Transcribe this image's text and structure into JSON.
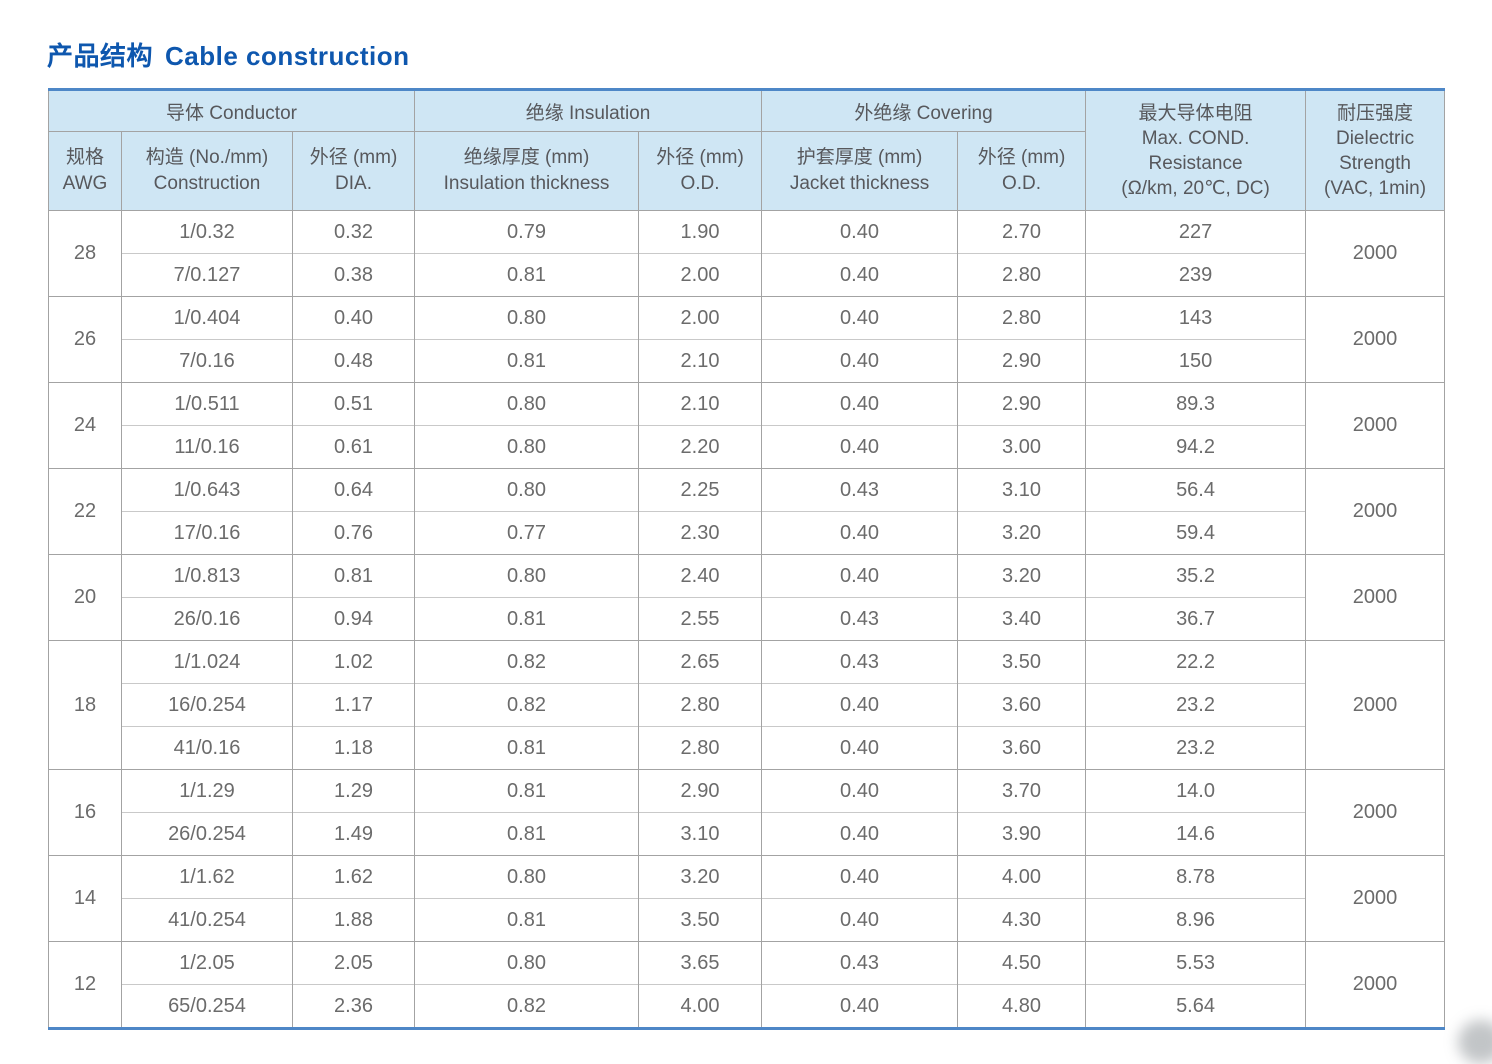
{
  "page": {
    "title_zh": "产品结构",
    "title_en": "Cable construction"
  },
  "colors": {
    "title_blue": "#0e57ae",
    "header_bg": "#cfe6f4",
    "frame_blue": "#4e87c7",
    "grid_gray": "#a3a3a3",
    "text_gray": "#6b6b6b"
  },
  "table": {
    "header_groups": [
      {
        "label": "导体 Conductor"
      },
      {
        "label": "绝缘 Insulation"
      },
      {
        "label": "外绝缘 Covering"
      }
    ],
    "sub_headers": [
      {
        "line1": "规格",
        "line2": "AWG"
      },
      {
        "line1": "构造 (No./mm)",
        "line2": "Construction"
      },
      {
        "line1": "外径 (mm)",
        "line2": "DIA."
      },
      {
        "line1": "绝缘厚度 (mm)",
        "line2": "Insulation thickness"
      },
      {
        "line1": "外径 (mm)",
        "line2": "O.D."
      },
      {
        "line1": "护套厚度 (mm)",
        "line2": "Jacket thickness"
      },
      {
        "line1": "外径 (mm)",
        "line2": "O.D."
      }
    ],
    "tall_headers": [
      {
        "lines": [
          "最大导体电阻",
          "Max. COND.",
          "Resistance",
          "(Ω/km, 20℃, DC)"
        ]
      },
      {
        "lines": [
          "耐压强度",
          "Dielectric",
          "Strength",
          "(VAC, 1min)"
        ]
      }
    ],
    "groups": [
      {
        "awg": "28",
        "dielectric": "2000",
        "rows": [
          {
            "construction": "1/0.32",
            "dia": "0.32",
            "ins_thickness": "0.79",
            "ins_od": "1.90",
            "jacket": "0.40",
            "cov_od": "2.70",
            "resistance": "227"
          },
          {
            "construction": "7/0.127",
            "dia": "0.38",
            "ins_thickness": "0.81",
            "ins_od": "2.00",
            "jacket": "0.40",
            "cov_od": "2.80",
            "resistance": "239"
          }
        ]
      },
      {
        "awg": "26",
        "dielectric": "2000",
        "rows": [
          {
            "construction": "1/0.404",
            "dia": "0.40",
            "ins_thickness": "0.80",
            "ins_od": "2.00",
            "jacket": "0.40",
            "cov_od": "2.80",
            "resistance": "143"
          },
          {
            "construction": "7/0.16",
            "dia": "0.48",
            "ins_thickness": "0.81",
            "ins_od": "2.10",
            "jacket": "0.40",
            "cov_od": "2.90",
            "resistance": "150"
          }
        ]
      },
      {
        "awg": "24",
        "dielectric": "2000",
        "rows": [
          {
            "construction": "1/0.511",
            "dia": "0.51",
            "ins_thickness": "0.80",
            "ins_od": "2.10",
            "jacket": "0.40",
            "cov_od": "2.90",
            "resistance": "89.3"
          },
          {
            "construction": "11/0.16",
            "dia": "0.61",
            "ins_thickness": "0.80",
            "ins_od": "2.20",
            "jacket": "0.40",
            "cov_od": "3.00",
            "resistance": "94.2"
          }
        ]
      },
      {
        "awg": "22",
        "dielectric": "2000",
        "rows": [
          {
            "construction": "1/0.643",
            "dia": "0.64",
            "ins_thickness": "0.80",
            "ins_od": "2.25",
            "jacket": "0.43",
            "cov_od": "3.10",
            "resistance": "56.4"
          },
          {
            "construction": "17/0.16",
            "dia": "0.76",
            "ins_thickness": "0.77",
            "ins_od": "2.30",
            "jacket": "0.40",
            "cov_od": "3.20",
            "resistance": "59.4"
          }
        ]
      },
      {
        "awg": "20",
        "dielectric": "2000",
        "rows": [
          {
            "construction": "1/0.813",
            "dia": "0.81",
            "ins_thickness": "0.80",
            "ins_od": "2.40",
            "jacket": "0.40",
            "cov_od": "3.20",
            "resistance": "35.2"
          },
          {
            "construction": "26/0.16",
            "dia": "0.94",
            "ins_thickness": "0.81",
            "ins_od": "2.55",
            "jacket": "0.43",
            "cov_od": "3.40",
            "resistance": "36.7"
          }
        ]
      },
      {
        "awg": "18",
        "dielectric": "2000",
        "rows": [
          {
            "construction": "1/1.024",
            "dia": "1.02",
            "ins_thickness": "0.82",
            "ins_od": "2.65",
            "jacket": "0.43",
            "cov_od": "3.50",
            "resistance": "22.2"
          },
          {
            "construction": "16/0.254",
            "dia": "1.17",
            "ins_thickness": "0.82",
            "ins_od": "2.80",
            "jacket": "0.40",
            "cov_od": "3.60",
            "resistance": "23.2"
          },
          {
            "construction": "41/0.16",
            "dia": "1.18",
            "ins_thickness": "0.81",
            "ins_od": "2.80",
            "jacket": "0.40",
            "cov_od": "3.60",
            "resistance": "23.2"
          }
        ]
      },
      {
        "awg": "16",
        "dielectric": "2000",
        "rows": [
          {
            "construction": "1/1.29",
            "dia": "1.29",
            "ins_thickness": "0.81",
            "ins_od": "2.90",
            "jacket": "0.40",
            "cov_od": "3.70",
            "resistance": "14.0"
          },
          {
            "construction": "26/0.254",
            "dia": "1.49",
            "ins_thickness": "0.81",
            "ins_od": "3.10",
            "jacket": "0.40",
            "cov_od": "3.90",
            "resistance": "14.6"
          }
        ]
      },
      {
        "awg": "14",
        "dielectric": "2000",
        "rows": [
          {
            "construction": "1/1.62",
            "dia": "1.62",
            "ins_thickness": "0.80",
            "ins_od": "3.20",
            "jacket": "0.40",
            "cov_od": "4.00",
            "resistance": "8.78"
          },
          {
            "construction": "41/0.254",
            "dia": "1.88",
            "ins_thickness": "0.81",
            "ins_od": "3.50",
            "jacket": "0.40",
            "cov_od": "4.30",
            "resistance": "8.96"
          }
        ]
      },
      {
        "awg": "12",
        "dielectric": "2000",
        "rows": [
          {
            "construction": "1/2.05",
            "dia": "2.05",
            "ins_thickness": "0.80",
            "ins_od": "3.65",
            "jacket": "0.43",
            "cov_od": "4.50",
            "resistance": "5.53"
          },
          {
            "construction": "65/0.254",
            "dia": "2.36",
            "ins_thickness": "0.82",
            "ins_od": "4.00",
            "jacket": "0.40",
            "cov_od": "4.80",
            "resistance": "5.64"
          }
        ]
      }
    ]
  }
}
